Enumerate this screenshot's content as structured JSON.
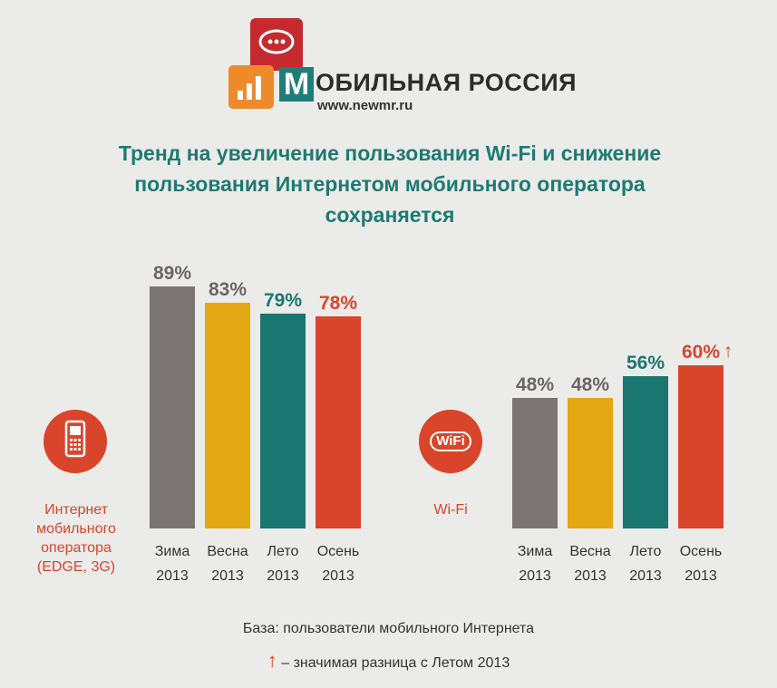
{
  "header": {
    "brand_letter": "М",
    "brand_name": "ОБИЛЬНАЯ РОССИЯ",
    "brand_url": "www.newmr.ru",
    "title_line1": "Тренд на увеличение пользования Wi-Fi и снижение",
    "title_line2": "пользования Интернетом мобильного оператора",
    "title_line3": "сохраняется"
  },
  "colors": {
    "winter": "#7a7474",
    "spring": "#e3a813",
    "summer": "#1a7670",
    "autumn": "#d9452a",
    "title": "#1e7a72"
  },
  "left_group": {
    "icon": "mobile-phone-icon",
    "label_lines": [
      "Интернет",
      "мобильного",
      "оператора",
      "(EDGE, 3G)"
    ]
  },
  "right_group": {
    "icon": "wifi-icon",
    "icon_text": "WiFi",
    "label": "Wi-Fi"
  },
  "chart_data": [
    {
      "type": "bar",
      "title": "Интернет мобильного оператора (EDGE, 3G)",
      "categories": [
        "Зима 2013",
        "Весна 2013",
        "Лето 2013",
        "Осень 2013"
      ],
      "values": [
        89,
        83,
        79,
        78
      ],
      "value_labels": [
        "89%",
        "83%",
        "79%",
        "78%"
      ],
      "ylim": [
        0,
        100
      ]
    },
    {
      "type": "bar",
      "title": "Wi-Fi",
      "categories": [
        "Зима 2013",
        "Весна 2013",
        "Лето 2013",
        "Осень 2013"
      ],
      "values": [
        48,
        48,
        56,
        60
      ],
      "value_labels": [
        "48%",
        "48%",
        "56%",
        "60%"
      ],
      "annotations": [
        "↑"
      ],
      "ylim": [
        0,
        100
      ]
    }
  ],
  "footer": {
    "base": "База: пользователи мобильного Интернета",
    "arrow": "↑",
    "note": "– значимая разница с Летом 2013"
  }
}
